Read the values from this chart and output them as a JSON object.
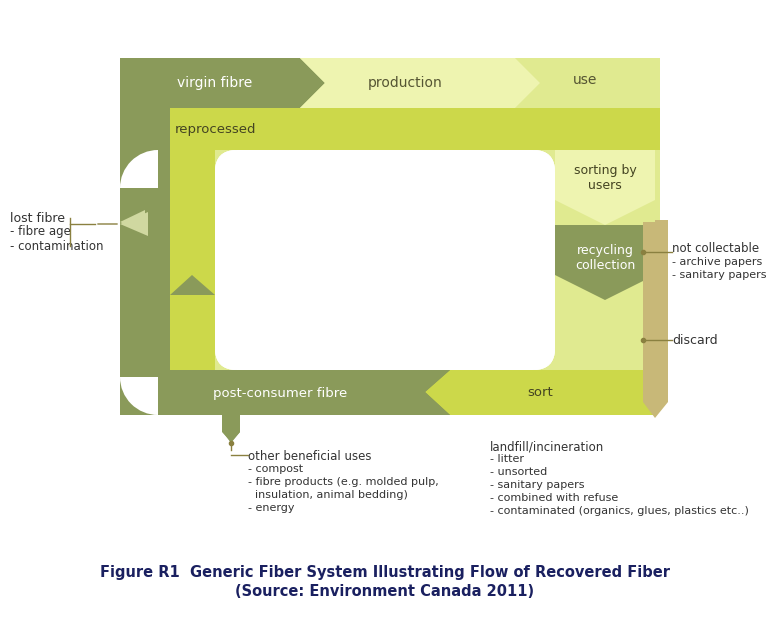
{
  "title_line1": "Figure R1  Generic Fiber System Illustrating Flow of Recovered Fiber",
  "title_line2": "(Source: Environment Canada 2011)",
  "bg_color": "#ffffff",
  "colors": {
    "dark_olive": "#8a9a5a",
    "medium_olive": "#9aaa5a",
    "light_yg": "#ccd84a",
    "pale_yg": "#e0ea90",
    "very_pale_yg": "#eef4b0",
    "tan": "#c8b878",
    "lost_arrow": "#b8c880",
    "light_lost": "#d0d8a0"
  },
  "labels": {
    "virgin_fibre": "virgin fibre",
    "production": "production",
    "use": "use",
    "reprocessed": "reprocessed",
    "lost_fibre": "lost fibre",
    "fibre_age": "- fibre age",
    "contamination": "- contamination",
    "sorting_by_users": "sorting by\nusers",
    "recycling_collection": "recycling\ncollection",
    "not_collectable": "not collectable",
    "archive_papers": "- archive papers",
    "sanitary_papers": "- sanitary papers",
    "discard": "discard",
    "post_consumer_fibre": "post-consumer fibre",
    "sort": "sort",
    "other_beneficial_uses": "other beneficial uses",
    "compost": "- compost",
    "fibre_products": "- fibre products (e.g. molded pulp,\n  insulation, animal bedding)",
    "energy": "- energy",
    "landfill_incineration": "landfill/incineration",
    "litter": "- litter",
    "unsorted": "- unsorted",
    "sanitary_papers2": "- sanitary papers",
    "combined": "- combined with refuse",
    "contaminated": "- contaminated (organics, glues, plastics etc..)"
  }
}
